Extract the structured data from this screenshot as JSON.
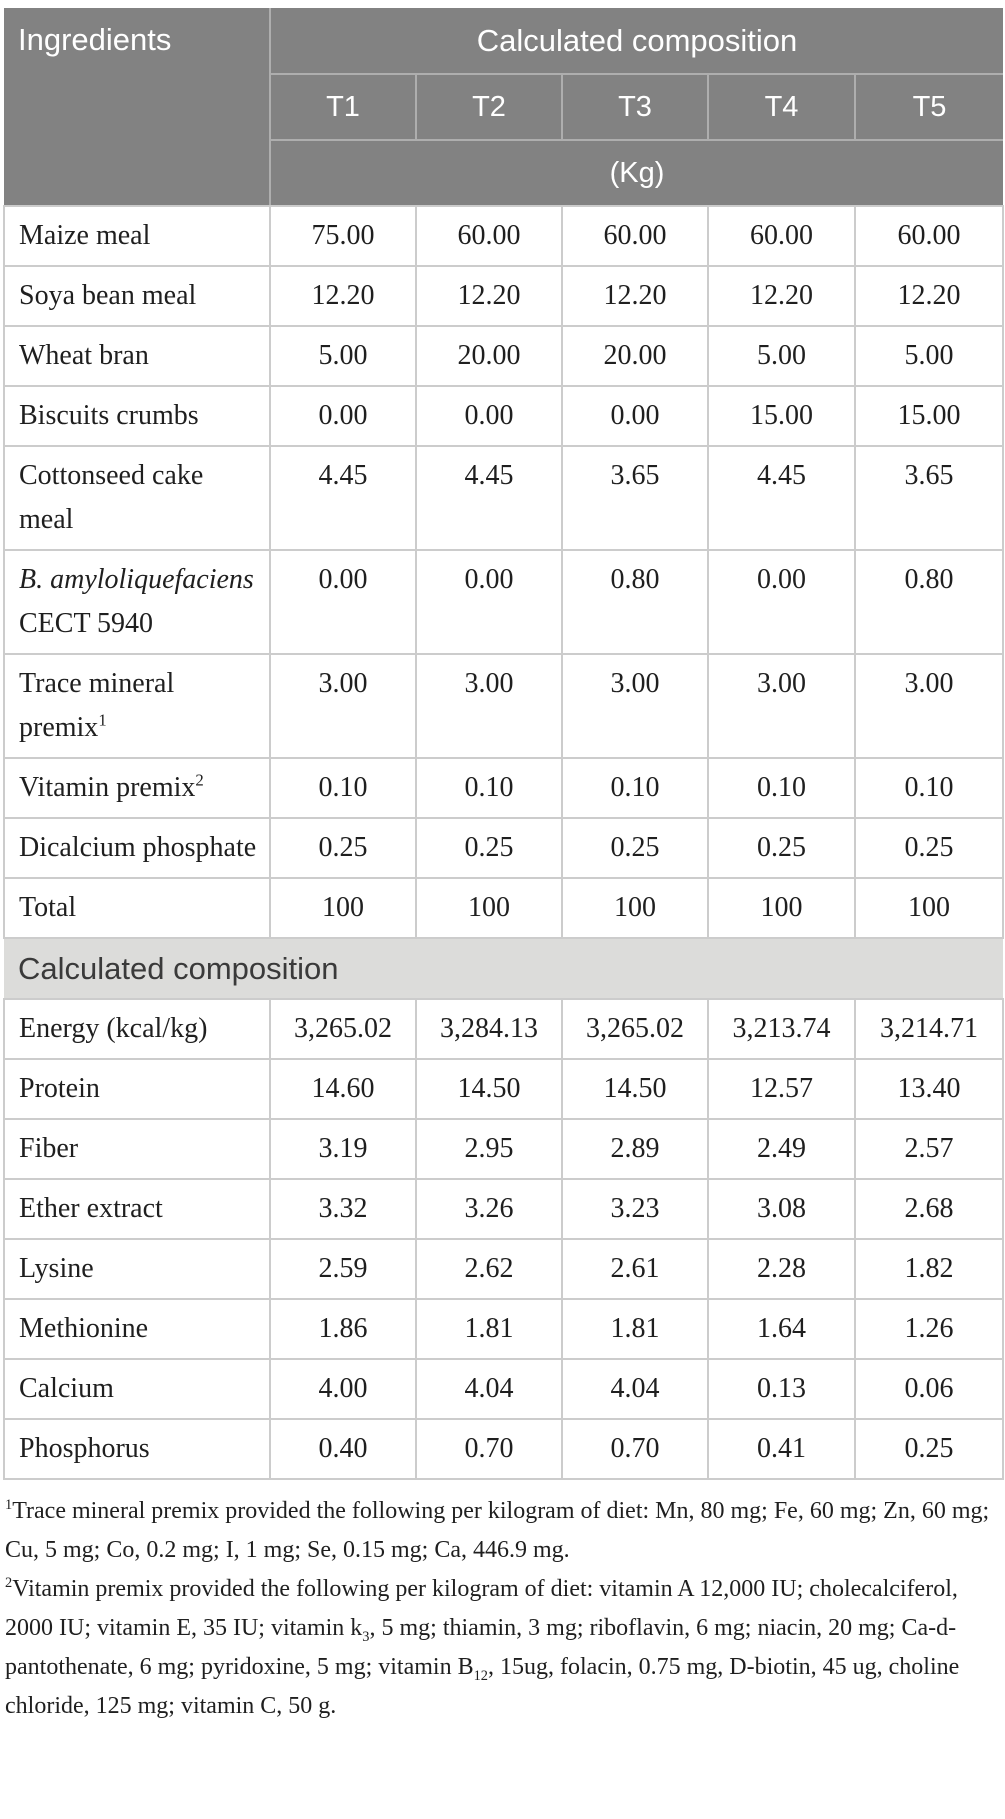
{
  "header": {
    "ingredients_label": "Ingredients",
    "group_label": "Calculated composition",
    "treatments": [
      "T1",
      "T2",
      "T3",
      "T4",
      "T5"
    ],
    "unit_label": "(Kg)"
  },
  "ingredient_rows": [
    {
      "label": [
        {
          "text": "Maize meal"
        }
      ],
      "values": [
        "75.00",
        "60.00",
        "60.00",
        "60.00",
        "60.00"
      ]
    },
    {
      "label": [
        {
          "text": "Soya bean meal"
        }
      ],
      "values": [
        "12.20",
        "12.20",
        "12.20",
        "12.20",
        "12.20"
      ]
    },
    {
      "label": [
        {
          "text": "Wheat bran"
        }
      ],
      "values": [
        "5.00",
        "20.00",
        "20.00",
        "5.00",
        "5.00"
      ]
    },
    {
      "label": [
        {
          "text": "Biscuits crumbs"
        }
      ],
      "values": [
        "0.00",
        "0.00",
        "0.00",
        "15.00",
        "15.00"
      ]
    },
    {
      "label": [
        {
          "text": "Cottonseed cake meal"
        }
      ],
      "values": [
        "4.45",
        "4.45",
        "3.65",
        "4.45",
        "3.65"
      ]
    },
    {
      "label": [
        {
          "italic": "B. amyloliquefaciens"
        },
        {
          "text": " CECT 5940"
        }
      ],
      "values": [
        "0.00",
        "0.00",
        "0.80",
        "0.00",
        "0.80"
      ]
    },
    {
      "label": [
        {
          "text": "Trace mineral premix"
        },
        {
          "sup": "1"
        }
      ],
      "values": [
        "3.00",
        "3.00",
        "3.00",
        "3.00",
        "3.00"
      ]
    },
    {
      "label": [
        {
          "text": "Vitamin premix"
        },
        {
          "sup": "2"
        }
      ],
      "values": [
        "0.10",
        "0.10",
        "0.10",
        "0.10",
        "0.10"
      ]
    },
    {
      "label": [
        {
          "text": "Dicalcium phosphate"
        }
      ],
      "values": [
        "0.25",
        "0.25",
        "0.25",
        "0.25",
        "0.25"
      ]
    },
    {
      "label": [
        {
          "text": "Total"
        }
      ],
      "values": [
        "100",
        "100",
        "100",
        "100",
        "100"
      ]
    }
  ],
  "section_header": "Calculated composition",
  "composition_rows": [
    {
      "label": [
        {
          "text": "Energy (kcal/kg)"
        }
      ],
      "values": [
        "3,265.02",
        "3,284.13",
        "3,265.02",
        "3,213.74",
        "3,214.71"
      ]
    },
    {
      "label": [
        {
          "text": "Protein"
        }
      ],
      "values": [
        "14.60",
        "14.50",
        "14.50",
        "12.57",
        "13.40"
      ]
    },
    {
      "label": [
        {
          "text": "Fiber"
        }
      ],
      "values": [
        "3.19",
        "2.95",
        "2.89",
        "2.49",
        "2.57"
      ]
    },
    {
      "label": [
        {
          "text": "Ether extract"
        }
      ],
      "values": [
        "3.32",
        "3.26",
        "3.23",
        "3.08",
        "2.68"
      ]
    },
    {
      "label": [
        {
          "text": "Lysine"
        }
      ],
      "values": [
        "2.59",
        "2.62",
        "2.61",
        "2.28",
        "1.82"
      ]
    },
    {
      "label": [
        {
          "text": "Methionine"
        }
      ],
      "values": [
        "1.86",
        "1.81",
        "1.81",
        "1.64",
        "1.26"
      ]
    },
    {
      "label": [
        {
          "text": "Calcium"
        }
      ],
      "values": [
        "4.00",
        "4.04",
        "4.04",
        "0.13",
        "0.06"
      ]
    },
    {
      "label": [
        {
          "text": "Phosphorus"
        }
      ],
      "values": [
        "0.40",
        "0.70",
        "0.70",
        "0.41",
        "0.25"
      ]
    }
  ],
  "footnotes": [
    [
      {
        "sup": "1"
      },
      {
        "text": "Trace mineral premix provided the following per kilogram of diet: Mn, 80 mg; Fe, 60 mg; Zn, 60 mg; Cu, 5 mg; Co, 0.2 mg; I, 1 mg; Se, 0.15 mg; Ca, 446.9 mg."
      }
    ],
    [
      {
        "sup": "2"
      },
      {
        "text": "Vitamin premix provided the following per kilogram of diet: vitamin A 12,000 IU; cholecalciferol, 2000 IU; vitamin E, 35 IU; vitamin k"
      },
      {
        "sub": "3"
      },
      {
        "text": ", 5 mg; thiamin, 3 mg; riboflavin, 6 mg; niacin, 20 mg; Ca-d-pantothenate, 6 mg; pyridoxine, 5 mg; vitamin B"
      },
      {
        "sub": "12"
      },
      {
        "text": ", 15ug, folacin, 0.75 mg, D-biotin, 45 ug, choline chloride, 125 mg; vitamin C, 50 g."
      }
    ]
  ],
  "colors": {
    "header_bg": "#828282",
    "header_divider": "#aeaeae",
    "header_text": "#ffffff",
    "body_border": "#cccccc",
    "section_bg": "#dcdcda",
    "section_text": "#3a3a3a",
    "body_text": "#1f1f1f",
    "page_bg": "#ffffff"
  }
}
